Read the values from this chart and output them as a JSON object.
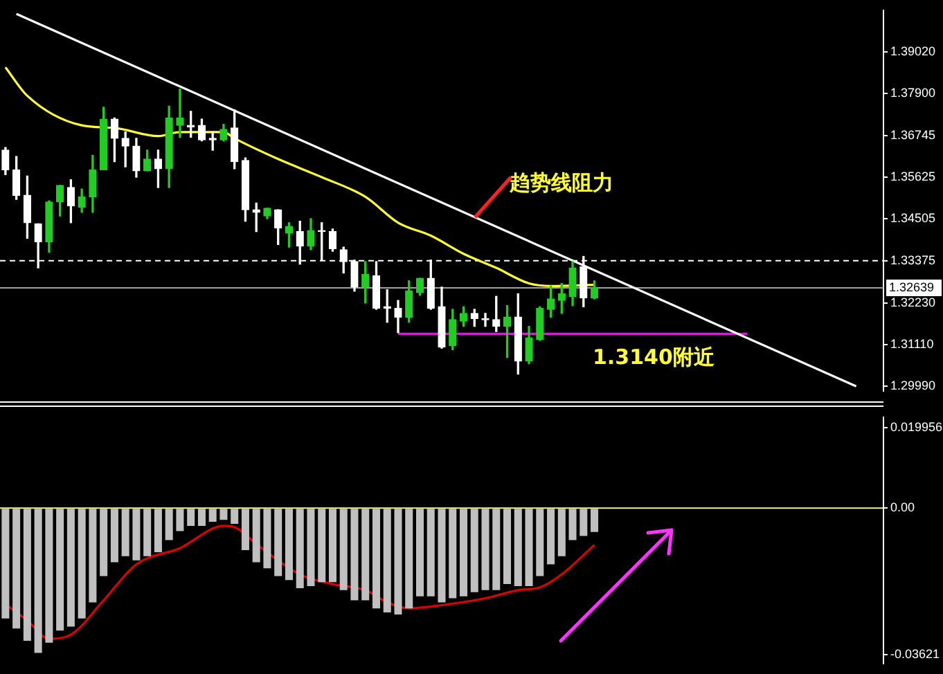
{
  "chart_data": [
    {
      "type": "candlestick",
      "categories": [
        null,
        null,
        null,
        null,
        null,
        null,
        null,
        null,
        null,
        null,
        null,
        null,
        null,
        null,
        null,
        null,
        null,
        null,
        null,
        null,
        null,
        null,
        null,
        null,
        null,
        null,
        null,
        null,
        null,
        null,
        null,
        null,
        null,
        null,
        null,
        null,
        null,
        null,
        null,
        null,
        null,
        null,
        null,
        null,
        null,
        null,
        null,
        null,
        null,
        null,
        null,
        null,
        null,
        null,
        null,
        null,
        null,
        null,
        null,
        null,
        null,
        null,
        null,
        null,
        null,
        null,
        null,
        null,
        null,
        null,
        null,
        null,
        null,
        null,
        null,
        null,
        null,
        null,
        null,
        null,
        null
      ],
      "colors": [
        "#ffffff",
        "#ffffff",
        "#ffffff",
        "#ffffff",
        "#22cc22",
        "#22cc22",
        "#ffffff",
        "#22cc22",
        "#22cc22",
        "#22cc22",
        "#ffffff",
        "#ffffff",
        "#ffffff",
        "#22cc22",
        "#ffffff",
        "#22cc22",
        "#22cc22",
        "#ffffff",
        "#ffffff",
        "#ffffff",
        "#22cc22",
        "#ffffff",
        "#ffffff",
        "#ffffff",
        "#22cc22",
        "#ffffff",
        "#22cc22",
        "#ffffff",
        "#22cc22",
        "#ffffff",
        "#ffffff",
        "#ffffff",
        "#ffffff",
        "#22cc22",
        "#ffffff",
        "#ffffff",
        "#ffffff",
        "#22cc22",
        "#22cc22",
        "#ffffff",
        "#ffffff",
        "#22cc22",
        "#22cc22",
        "#ffffff",
        "#ffffff",
        "#ffffff",
        "#22cc22",
        "#ffffff",
        "#22cc22",
        "#22cc22",
        "#22cc22",
        "#22cc22",
        "#22cc22",
        "#ffffff",
        "#22cc22",
        null,
        null,
        null,
        null,
        null,
        null,
        null,
        null,
        null,
        null,
        null,
        null,
        null,
        null,
        null,
        null,
        null,
        null,
        null,
        null,
        null,
        null,
        null,
        null,
        null,
        null
      ],
      "ohlc": [
        [
          1.3636,
          1.3643,
          1.357,
          1.3583
        ],
        [
          1.3583,
          1.3619,
          1.3503,
          1.3514
        ],
        [
          1.3514,
          1.3566,
          1.3398,
          1.344
        ],
        [
          1.3437,
          1.3437,
          1.3318,
          1.3388
        ],
        [
          1.3388,
          1.3499,
          1.336,
          1.3496
        ],
        [
          1.3496,
          1.3541,
          1.3458,
          1.3541
        ],
        [
          1.3535,
          1.3556,
          1.344,
          1.3486
        ],
        [
          1.3482,
          1.3531,
          1.3468,
          1.351
        ],
        [
          1.351,
          1.3622,
          1.3468,
          1.3583
        ],
        [
          1.3583,
          1.3752,
          1.3583,
          1.372
        ],
        [
          1.372,
          1.3723,
          1.3605,
          1.3668
        ],
        [
          1.3668,
          1.3685,
          1.3591,
          1.3647
        ],
        [
          1.3647,
          1.3668,
          1.3563,
          1.358
        ],
        [
          1.358,
          1.3636,
          1.358,
          1.3612
        ],
        [
          1.3612,
          1.3636,
          1.3535,
          1.3586
        ],
        [
          1.3586,
          1.3755,
          1.3535,
          1.3723
        ],
        [
          1.3703,
          1.3801,
          1.3671,
          1.3723
        ],
        [
          1.3703,
          1.3741,
          1.3671,
          1.3699
        ],
        [
          1.3703,
          1.372,
          1.3661,
          1.3664
        ],
        [
          1.3668,
          1.3685,
          1.3636,
          1.3664
        ],
        [
          1.3664,
          1.3706,
          1.3661,
          1.3692
        ],
        [
          1.3696,
          1.3745,
          1.3586,
          1.3605
        ],
        [
          1.3608,
          1.3615,
          1.3444,
          1.3475
        ],
        [
          1.3475,
          1.3493,
          1.3416,
          1.3468
        ],
        [
          1.3458,
          1.3479,
          1.3451,
          1.3479
        ],
        [
          1.3475,
          1.3475,
          1.3381,
          1.3426
        ],
        [
          1.3412,
          1.344,
          1.3374,
          1.343
        ],
        [
          1.3416,
          1.3444,
          1.3328,
          1.3377
        ],
        [
          1.3377,
          1.3451,
          1.3367,
          1.3419
        ],
        [
          1.3419,
          1.344,
          1.3339,
          1.3416
        ],
        [
          1.3416,
          1.3423,
          1.3363,
          1.337
        ],
        [
          1.3367,
          1.3374,
          1.3304,
          1.3335
        ],
        [
          1.3335,
          1.3339,
          1.3255,
          1.3266
        ],
        [
          1.3266,
          1.3335,
          1.3223,
          1.33
        ],
        [
          1.3297,
          1.3335,
          1.3206,
          1.3209
        ],
        [
          1.3213,
          1.3259,
          1.3171,
          1.3209
        ],
        [
          1.3209,
          1.323,
          1.3143,
          1.3185
        ],
        [
          1.3185,
          1.3283,
          1.3171,
          1.3255
        ],
        [
          1.3251,
          1.329,
          1.3244,
          1.329
        ],
        [
          1.329,
          1.3339,
          1.3206,
          1.3209
        ],
        [
          1.3213,
          1.3266,
          1.3101,
          1.3104
        ],
        [
          1.3108,
          1.3206,
          1.3097,
          1.3178
        ],
        [
          1.3174,
          1.3213,
          1.316,
          1.3195
        ],
        [
          1.3195,
          1.3206,
          1.316,
          1.3181
        ],
        [
          1.3181,
          1.3195,
          1.316,
          1.3178
        ],
        [
          1.3178,
          1.3241,
          1.3146,
          1.316
        ],
        [
          1.316,
          1.3216,
          1.3076,
          1.3185
        ],
        [
          1.3185,
          1.3248,
          1.3031,
          1.3066
        ],
        [
          1.3066,
          1.316,
          1.3059,
          1.3129
        ],
        [
          1.3125,
          1.3213,
          1.3122,
          1.3209
        ],
        [
          1.3206,
          1.3269,
          1.3185,
          1.3234
        ],
        [
          1.323,
          1.3276,
          1.3195,
          1.3248
        ],
        [
          1.3241,
          1.3335,
          1.3216,
          1.3318
        ],
        [
          1.3321,
          1.3349,
          1.3213,
          1.3237
        ],
        [
          1.3237,
          1.3283,
          1.3234,
          1.3264
        ],
        null,
        null,
        null,
        null,
        null,
        null,
        null,
        null,
        null,
        null,
        null,
        null,
        null,
        null,
        null,
        null,
        null,
        null,
        null,
        null,
        null,
        null,
        null,
        null,
        null,
        null
      ],
      "series": [
        {
          "type": "line",
          "color": "#ffff33",
          "values": [
            1.386,
            null,
            1.3783,
            null,
            null,
            null,
            null,
            1.3703,
            null,
            null,
            1.3696,
            null,
            null,
            null,
            1.3674,
            null,
            1.3685,
            null,
            null,
            null,
            1.3685,
            1.3668,
            null,
            null,
            null,
            1.3612,
            null,
            null,
            null,
            1.3563,
            null,
            null,
            null,
            1.351,
            null,
            null,
            1.344,
            null,
            null,
            1.3405,
            null,
            null,
            1.3356,
            null,
            null,
            1.3318,
            null,
            null,
            1.3276,
            null,
            1.3269,
            null,
            null,
            null,
            1.3272,
            null,
            null,
            null,
            null,
            null,
            null,
            null,
            null,
            null,
            null,
            null,
            null,
            null,
            null,
            null,
            null,
            null,
            null,
            null,
            null,
            null,
            null,
            null,
            null,
            null,
            null
          ]
        },
        {
          "type": "line",
          "color": "#ffffff",
          "values": [
            null,
            1.4004,
            null,
            null,
            null,
            null,
            null,
            null,
            null,
            null,
            null,
            null,
            null,
            null,
            null,
            null,
            null,
            null,
            null,
            null,
            null,
            null,
            null,
            null,
            null,
            null,
            null,
            null,
            null,
            null,
            null,
            null,
            null,
            null,
            null,
            null,
            null,
            null,
            null,
            null,
            null,
            null,
            null,
            null,
            null,
            null,
            null,
            null,
            null,
            null,
            null,
            null,
            null,
            null,
            null,
            null,
            null,
            null,
            null,
            null,
            null,
            null,
            null,
            null,
            null,
            null,
            null,
            null,
            null,
            null,
            null,
            null,
            null,
            null,
            null,
            null,
            null,
            null,
            1.2998,
            null,
            null
          ]
        },
        {
          "type": "line",
          "color": "#ff00ff",
          "values": [
            null,
            null,
            null,
            null,
            null,
            null,
            null,
            null,
            null,
            null,
            null,
            null,
            null,
            null,
            null,
            null,
            null,
            null,
            null,
            null,
            null,
            null,
            null,
            null,
            null,
            null,
            null,
            null,
            null,
            null,
            null,
            null,
            null,
            null,
            null,
            null,
            1.314,
            null,
            null,
            null,
            null,
            null,
            null,
            null,
            null,
            null,
            null,
            null,
            null,
            null,
            null,
            null,
            null,
            null,
            null,
            null,
            null,
            null,
            null,
            null,
            null,
            null,
            null,
            null,
            null,
            null,
            null,
            null,
            1.314,
            null,
            null,
            null,
            null,
            null,
            null,
            null,
            null,
            null,
            null,
            null,
            null
          ]
        }
      ],
      "ylim": [
        1.2985,
        1.4014
      ],
      "yticks": [
        {
          "value": 1.3902,
          "label": "1.39020"
        },
        {
          "value": 1.379,
          "label": "1.37900"
        },
        {
          "value": 1.36745,
          "label": "1.36745"
        },
        {
          "value": 1.35625,
          "label": "1.35625"
        },
        {
          "value": 1.34505,
          "label": "1.34505"
        },
        {
          "value": 1.33375,
          "label": "1.33375"
        },
        {
          "value": 1.3223,
          "label": "1.32230"
        },
        {
          "value": 1.3111,
          "label": "1.31110"
        },
        {
          "value": 1.2999,
          "label": "1.29990"
        }
      ],
      "ref_lines": [
        {
          "axis": "y",
          "value": 1.33375,
          "color": "#ffffff",
          "line_style": "dashed"
        },
        {
          "axis": "y",
          "value": 1.32639,
          "label": "1.32639",
          "color": "#a0a0a0"
        }
      ],
      "annotations": [
        "趋势线阻力",
        {
          "text": "1.3140附近",
          "y": 1.314
        }
      ],
      "tick_labels": "y"
    },
    {
      "type": "bar",
      "categories": [
        null,
        null,
        null,
        null,
        null,
        null,
        null,
        null,
        null,
        null,
        null,
        null,
        null,
        null,
        null,
        null,
        null,
        null,
        null,
        null,
        null,
        null,
        null,
        null,
        null,
        null,
        null,
        null,
        null,
        null,
        null,
        null,
        null,
        null,
        null,
        null,
        null,
        null,
        null,
        null,
        null,
        null,
        null,
        null,
        null,
        null,
        null,
        null,
        null,
        null,
        null,
        null,
        null,
        null,
        null,
        null,
        null,
        null,
        null,
        null,
        null,
        null,
        null,
        null,
        null,
        null,
        null,
        null,
        null,
        null,
        null,
        null,
        null,
        null,
        null,
        null,
        null,
        null,
        null,
        null,
        null
      ],
      "color": "#c0c0c0",
      "values": [
        -0.0273,
        -0.0298,
        -0.0328,
        -0.0358,
        -0.0333,
        -0.0303,
        -0.0293,
        -0.0273,
        -0.0233,
        -0.0168,
        -0.0134,
        -0.0119,
        -0.0129,
        -0.0119,
        -0.0109,
        -0.0079,
        -0.0057,
        -0.0044,
        -0.0044,
        -0.0034,
        -0.0029,
        -0.0039,
        -0.0104,
        -0.0134,
        -0.0149,
        -0.0168,
        -0.0178,
        -0.0198,
        -0.0193,
        -0.0183,
        -0.0183,
        -0.0203,
        -0.0228,
        -0.0228,
        -0.0248,
        -0.0258,
        -0.0263,
        -0.0248,
        -0.0218,
        -0.0218,
        -0.0233,
        -0.0223,
        -0.0218,
        -0.0208,
        -0.0203,
        -0.0203,
        -0.0188,
        -0.0193,
        -0.0193,
        -0.0168,
        -0.0139,
        -0.0119,
        -0.0079,
        -0.0069,
        -0.0059,
        null,
        null,
        null,
        null,
        null,
        null,
        null,
        null,
        null,
        null,
        null,
        null,
        null,
        null,
        null,
        null,
        null,
        null,
        null,
        null,
        null,
        null,
        null,
        null,
        null,
        null
      ],
      "series": [
        {
          "type": "line",
          "color": "#dd0000",
          "values": [
            -0.0238,
            null,
            -0.0278,
            null,
            -0.0323,
            null,
            -0.0313,
            null,
            null,
            -0.0228,
            null,
            null,
            -0.0139,
            null,
            null,
            null,
            -0.0099,
            null,
            null,
            null,
            -0.0044,
            -0.0047,
            null,
            -0.0089,
            null,
            null,
            null,
            -0.0164,
            null,
            null,
            -0.0188,
            null,
            null,
            -0.0203,
            null,
            -0.0233,
            null,
            -0.0248,
            null,
            null,
            -0.024,
            null,
            null,
            null,
            -0.0223,
            null,
            null,
            -0.0203,
            null,
            -0.0196,
            null,
            -0.0164,
            null,
            null,
            -0.0091,
            null,
            null,
            null,
            null,
            null,
            null,
            null,
            null,
            null,
            null,
            null,
            null,
            null,
            null,
            null,
            null,
            null,
            null,
            null,
            null,
            null,
            null,
            null,
            null,
            null,
            null
          ]
        }
      ],
      "ylim": [
        -0.0385,
        0.0225
      ],
      "yticks": [
        {
          "value": 0.019956,
          "label": "0.019956"
        },
        {
          "value": 0,
          "label": "0.00"
        },
        {
          "value": -0.03621,
          "label": "-0.03621"
        }
      ],
      "ref_lines": [
        {
          "axis": "y",
          "value": 0,
          "color": "#f0f0a0"
        }
      ],
      "tick_labels": "y"
    }
  ]
}
